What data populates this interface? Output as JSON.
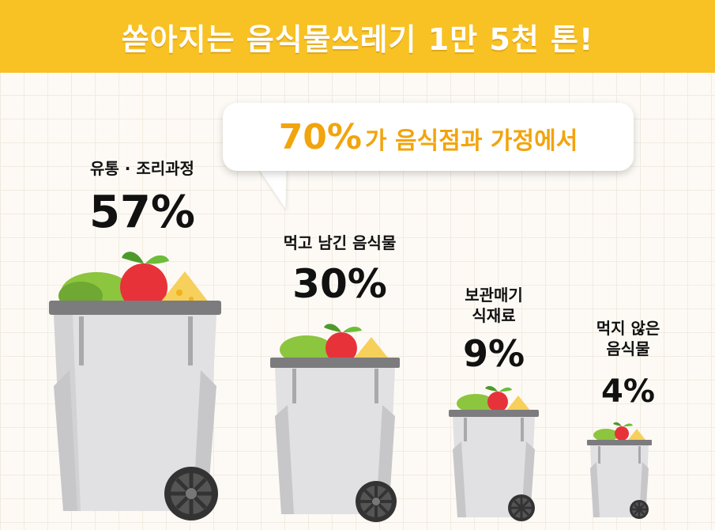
{
  "title": "쏟아지는 음식물쓰레기 1만 5천 톤!",
  "callout": {
    "percent": "70%",
    "text": "가 음식점과 가정에서"
  },
  "categories": [
    {
      "label": "유통 · 조리과정",
      "percent": "57%"
    },
    {
      "label": "먹고 남긴 음식물",
      "percent": "30%"
    },
    {
      "label_line1": "보관매기",
      "label_line2": "식재료",
      "percent": "9%"
    },
    {
      "label_line1": "먹지 않은",
      "label_line2": "음식물",
      "percent": "4%"
    }
  ],
  "colors": {
    "header": "#f8c124",
    "callout_text": "#f2a40d",
    "bin_body": "#e1e1e3",
    "bin_lid": "#7c7c7e",
    "wheel": "#333333"
  }
}
